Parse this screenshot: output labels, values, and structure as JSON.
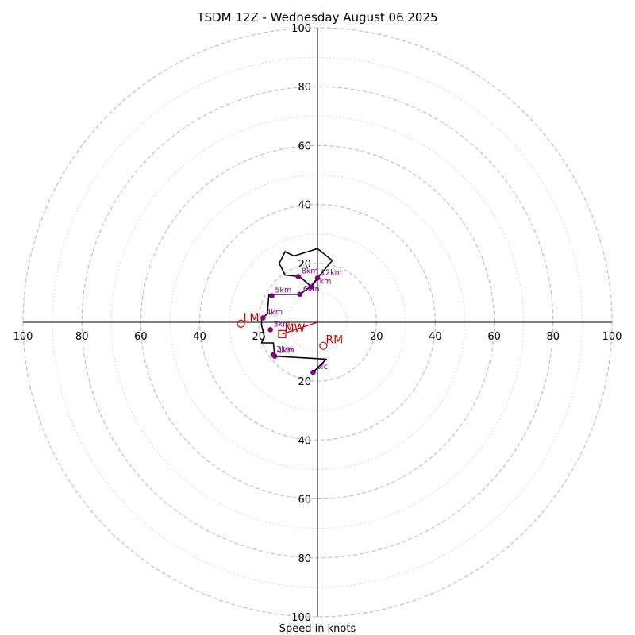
{
  "chart_data": {
    "type": "scatter",
    "title": "TSDM 12Z - Wednesday August 06 2025",
    "xlabel": "Speed in knots",
    "ylabel": "",
    "xlim": [
      -100,
      100
    ],
    "ylim": [
      -100,
      100
    ],
    "rings_major": [
      20,
      40,
      60,
      80,
      100
    ],
    "rings_minor": [
      10,
      30,
      50,
      70,
      90
    ],
    "x_tick_labels": [
      "100",
      "80",
      "60",
      "40",
      "20",
      "20",
      "40",
      "60",
      "80",
      "100"
    ],
    "y_tick_labels": [
      "100",
      "80",
      "60",
      "40",
      "20",
      "20",
      "40",
      "60",
      "80",
      "100"
    ],
    "hodograph": [
      [
        -1.5,
        -17
      ],
      [
        3,
        -12.5
      ],
      [
        -14.5,
        -11.5
      ],
      [
        -15,
        -7
      ],
      [
        -19,
        -7
      ],
      [
        -18,
        -5
      ],
      [
        -19,
        -1
      ],
      [
        -19,
        1
      ],
      [
        -17,
        3
      ],
      [
        -16.5,
        9.5
      ],
      [
        -6,
        9.5
      ],
      [
        -2.5,
        12
      ],
      [
        0,
        15
      ],
      [
        5,
        21
      ],
      [
        0,
        25
      ],
      [
        -8,
        22.5
      ],
      [
        -11,
        24
      ],
      [
        -13,
        20
      ],
      [
        -11,
        16
      ],
      [
        -6,
        15.5
      ],
      [
        -2,
        12
      ],
      [
        0,
        15
      ]
    ],
    "height_markers": [
      {
        "label": "Sfc",
        "u": -1.5,
        "v": -17
      },
      {
        "label": "1km",
        "u": -14.5,
        "v": -11.5
      },
      {
        "label": "2km",
        "u": -15,
        "v": -11
      },
      {
        "label": "3km",
        "u": -16,
        "v": -2.5
      },
      {
        "label": "4km",
        "u": -18.5,
        "v": 1.5
      },
      {
        "label": "5km",
        "u": -15.5,
        "v": 9
      },
      {
        "label": "6km",
        "u": -6,
        "v": 9.5
      },
      {
        "label": "7km",
        "u": -2,
        "v": 12
      },
      {
        "label": "8km",
        "u": -6.5,
        "v": 15.5
      },
      {
        "label": "12km",
        "u": 0,
        "v": 15
      }
    ],
    "motion": [
      {
        "label": "LM",
        "u": -26,
        "v": -0.5,
        "marker": "circle"
      },
      {
        "label": "RM",
        "u": 2,
        "v": -8,
        "marker": "circle"
      },
      {
        "label": "MW",
        "u": -12,
        "v": -4,
        "marker": "square"
      }
    ],
    "mean_wind_vector": {
      "u": -12,
      "v": -4
    },
    "colors": {
      "hodograph": "#000000",
      "markers": "#800080",
      "motion": "#cc0000",
      "rings": "#bbbbbb"
    }
  }
}
